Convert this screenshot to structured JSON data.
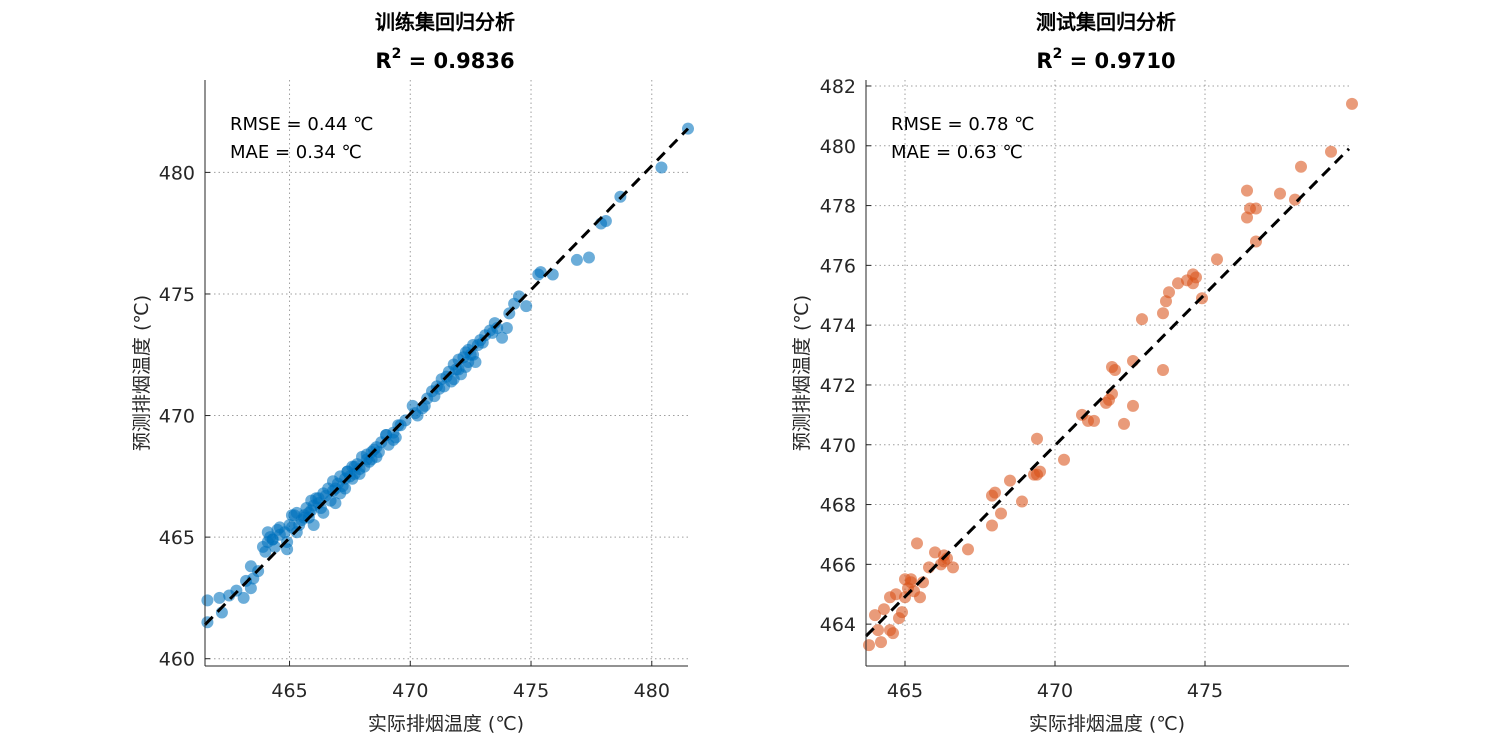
{
  "chart_data": [
    {
      "type": "scatter",
      "title": "训练集回归分析",
      "subtitle": {
        "prefix": "R",
        "sup": "2",
        "suffix": " = 0.9836"
      },
      "xlabel": "实际排烟温度 (℃)",
      "ylabel": "预测排烟温度 (℃)",
      "annotations": [
        "RMSE = 0.44 ℃",
        "MAE = 0.34 ℃"
      ],
      "xlim": [
        461.5,
        481.5
      ],
      "ylim": [
        459.7,
        483.8
      ],
      "xticks": [
        465,
        470,
        475,
        480
      ],
      "yticks": [
        460,
        465,
        470,
        475,
        480
      ],
      "grid": true,
      "color": "#0072BD",
      "reference_line": {
        "from": [
          461.5,
          461.4
        ],
        "to": [
          481.5,
          481.8
        ]
      },
      "series": [
        {
          "x": [
            461.6,
            461.6,
            462.1,
            462.2,
            462.5,
            462.8,
            463.1,
            463.2,
            463.4,
            463.4,
            463.5,
            463.7,
            463.9,
            464.0,
            464.1,
            464.2,
            464.3,
            464.4,
            464.5,
            464.6,
            464.8,
            464.9,
            465.0,
            465.1,
            465.2,
            465.3,
            465.4,
            465.5,
            465.6,
            465.7,
            465.8,
            465.9,
            466.0,
            466.1,
            466.2,
            466.3,
            466.4,
            466.5,
            466.6,
            466.7,
            466.8,
            466.9,
            467.0,
            467.1,
            467.2,
            467.3,
            467.4,
            467.5,
            467.6,
            467.7,
            467.8,
            467.9,
            468.0,
            468.1,
            468.2,
            468.3,
            468.4,
            468.5,
            468.6,
            468.8,
            469.0,
            469.1,
            469.3,
            469.5,
            469.8,
            470.1,
            470.3,
            470.5,
            470.7,
            470.9,
            471.1,
            471.3,
            471.5,
            471.6,
            471.7,
            471.8,
            471.9,
            472.0,
            472.1,
            472.2,
            472.3,
            472.4,
            472.5,
            472.6,
            472.7,
            472.9,
            473.1,
            473.3,
            473.5,
            473.8,
            474.0,
            474.1,
            474.3,
            474.5,
            474.8,
            475.3,
            475.4,
            475.9,
            476.9,
            477.4,
            477.9,
            478.1,
            478.7,
            480.4,
            481.5,
            464.1,
            464.6,
            465.3,
            465.8,
            466.2,
            466.8,
            467.3,
            467.7,
            468.2,
            468.7,
            469.3,
            470.2,
            471.0,
            471.8,
            472.3,
            472.8,
            473.4,
            464.9,
            465.6,
            466.4,
            467.1,
            467.9,
            468.6,
            469.6,
            470.6,
            471.4,
            472.0,
            472.6,
            473.0,
            465.1,
            466.0,
            466.9,
            467.6,
            468.4,
            469.0,
            471.2,
            472.4,
            473.6,
            464.3,
            465.9,
            467.4,
            469.4
          ],
          "y": [
            462.4,
            461.5,
            462.5,
            461.9,
            462.6,
            462.8,
            462.5,
            463.2,
            463.8,
            462.9,
            463.3,
            463.6,
            464.6,
            464.4,
            465.2,
            465.0,
            464.9,
            464.6,
            465.3,
            465.1,
            465.2,
            464.8,
            465.5,
            465.4,
            465.9,
            466.0,
            465.5,
            465.7,
            465.9,
            466.2,
            466.0,
            466.5,
            466.3,
            466.6,
            466.4,
            466.2,
            466.8,
            466.7,
            467.0,
            466.5,
            467.3,
            467.0,
            467.2,
            467.5,
            467.1,
            467.4,
            467.7,
            467.5,
            467.9,
            467.6,
            468.0,
            467.8,
            468.3,
            467.9,
            468.4,
            468.1,
            468.5,
            468.6,
            468.3,
            468.9,
            469.2,
            468.8,
            469.3,
            469.6,
            469.8,
            470.4,
            470.0,
            470.3,
            470.7,
            471.0,
            471.2,
            471.5,
            471.6,
            471.8,
            471.4,
            472.1,
            471.9,
            472.3,
            471.7,
            472.4,
            472.0,
            472.7,
            472.5,
            472.9,
            472.2,
            473.1,
            473.3,
            473.5,
            473.8,
            473.2,
            473.6,
            474.2,
            474.6,
            474.9,
            474.5,
            475.8,
            475.9,
            475.8,
            476.4,
            476.5,
            477.9,
            478.0,
            479.0,
            480.2,
            481.8,
            464.8,
            465.4,
            465.2,
            465.8,
            466.6,
            466.9,
            467.0,
            467.9,
            468.2,
            468.5,
            469.0,
            470.1,
            470.8,
            471.5,
            472.6,
            472.9,
            473.4,
            464.5,
            465.8,
            466.0,
            466.8,
            467.6,
            468.7,
            469.6,
            470.4,
            471.2,
            471.9,
            472.5,
            473.0,
            465.9,
            465.5,
            466.4,
            467.4,
            468.2,
            469.2,
            471.1,
            472.2,
            473.6,
            464.9,
            466.1,
            467.7,
            469.1
          ]
        }
      ]
    },
    {
      "type": "scatter",
      "title": "测试集回归分析",
      "subtitle": {
        "prefix": "R",
        "sup": "2",
        "suffix": " = 0.9710"
      },
      "xlabel": "实际排烟温度 (℃)",
      "ylabel": "预测排烟温度 (℃)",
      "annotations": [
        "RMSE = 0.78 ℃",
        "MAE = 0.63 ℃"
      ],
      "xlim": [
        463.7,
        479.8
      ],
      "ylim": [
        462.6,
        482.2
      ],
      "xticks": [
        465,
        470,
        475
      ],
      "yticks": [
        464,
        466,
        468,
        470,
        472,
        474,
        476,
        478,
        480,
        482
      ],
      "grid": true,
      "color": "#D95319",
      "reference_line": {
        "from": [
          463.7,
          463.6
        ],
        "to": [
          479.8,
          479.9
        ]
      },
      "series": [
        {
          "x": [
            463.8,
            464.0,
            464.2,
            464.3,
            464.5,
            464.6,
            464.7,
            464.8,
            464.9,
            465.0,
            465.1,
            465.2,
            465.3,
            465.4,
            465.5,
            465.6,
            465.8,
            466.0,
            466.2,
            466.3,
            466.4,
            466.6,
            467.1,
            467.9,
            468.0,
            468.2,
            468.5,
            468.9,
            469.3,
            469.4,
            469.5,
            470.3,
            470.9,
            471.1,
            471.3,
            471.7,
            471.8,
            471.9,
            472.0,
            472.3,
            472.6,
            472.6,
            472.9,
            473.6,
            473.6,
            473.7,
            473.8,
            474.1,
            474.4,
            474.6,
            474.7,
            474.9,
            475.4,
            476.4,
            476.5,
            476.7,
            476.7,
            477.5,
            478.0,
            478.2,
            479.2,
            479.9,
            464.5,
            465.2,
            466.3,
            467.9,
            469.4,
            471.9,
            474.6,
            476.4,
            464.1,
            465.0
          ],
          "y": [
            463.3,
            464.3,
            463.4,
            464.5,
            464.9,
            463.7,
            465.0,
            464.2,
            464.4,
            464.9,
            465.2,
            465.4,
            465.1,
            466.7,
            464.9,
            465.4,
            465.9,
            466.4,
            466.0,
            466.3,
            466.2,
            465.9,
            466.5,
            467.3,
            468.4,
            467.7,
            468.8,
            468.1,
            469.0,
            470.2,
            469.1,
            469.5,
            471.0,
            470.8,
            470.8,
            471.4,
            471.5,
            472.6,
            472.5,
            470.7,
            471.3,
            472.8,
            474.2,
            472.5,
            474.4,
            474.8,
            475.1,
            475.4,
            475.5,
            475.4,
            475.6,
            474.9,
            476.2,
            477.6,
            477.9,
            477.9,
            476.8,
            478.4,
            478.2,
            479.3,
            479.8,
            481.4,
            463.8,
            465.5,
            466.1,
            468.3,
            469.0,
            471.7,
            475.7,
            478.5,
            463.8,
            465.5
          ]
        }
      ]
    }
  ]
}
